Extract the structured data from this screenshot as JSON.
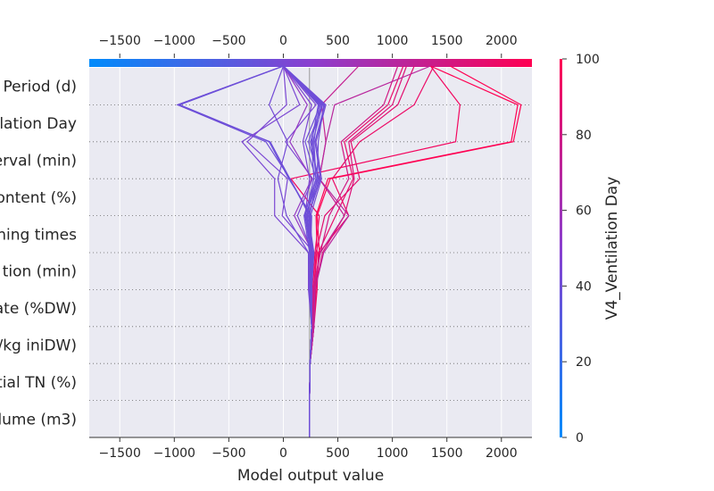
{
  "chart_data": {
    "type": "line",
    "xlabel": "Model output value",
    "xlim": [
      -1780,
      2280
    ],
    "x_ticks": [
      -1500,
      -1000,
      -500,
      0,
      500,
      1000,
      1500,
      2000
    ],
    "x_tick_labels": [
      "−1500",
      "−1000",
      "−500",
      "0",
      "500",
      "1000",
      "1500",
      "2000"
    ],
    "base_value": 240,
    "features": [
      "Period (d)",
      "lation Day",
      "erval (min)",
      "ontent (%)",
      "ning times",
      "tion (min)",
      "ate (%DW)",
      "/kg iniDW)",
      "tial TN (%)",
      "lume (m3)"
    ],
    "colorbar": {
      "label": "V4_Ventilation Day",
      "min": 0,
      "max": 100,
      "ticks": [
        0,
        20,
        40,
        60,
        80,
        100
      ],
      "colors": [
        "#008bfb",
        "#8a3fcf",
        "#ff0052"
      ]
    },
    "series": [
      {
        "color_value": 100,
        "values": [
          1530,
          2180,
          2110,
          430,
          310,
          330,
          290,
          280,
          245,
          240
        ]
      },
      {
        "color_value": 100,
        "values": [
          1350,
          2150,
          2090,
          410,
          300,
          310,
          280,
          280,
          245,
          240
        ]
      },
      {
        "color_value": 95,
        "values": [
          1350,
          1620,
          1580,
          70,
          330,
          290,
          270,
          270,
          245,
          240
        ]
      },
      {
        "color_value": 92,
        "values": [
          1380,
          1200,
          700,
          450,
          600,
          330,
          300,
          280,
          245,
          240
        ]
      },
      {
        "color_value": 90,
        "values": [
          1100,
          960,
          560,
          640,
          480,
          320,
          310,
          280,
          245,
          240
        ]
      },
      {
        "color_value": 88,
        "values": [
          1200,
          1050,
          620,
          700,
          380,
          300,
          280,
          270,
          245,
          240
        ]
      },
      {
        "color_value": 85,
        "values": [
          1130,
          1000,
          600,
          650,
          560,
          360,
          290,
          280,
          245,
          240
        ]
      },
      {
        "color_value": 80,
        "values": [
          1050,
          920,
          530,
          600,
          420,
          340,
          280,
          270,
          245,
          240
        ]
      },
      {
        "color_value": 75,
        "values": [
          690,
          350,
          390,
          330,
          560,
          340,
          270,
          280,
          245,
          240
        ]
      },
      {
        "color_value": 70,
        "values": [
          1350,
          470,
          390,
          330,
          600,
          370,
          290,
          280,
          245,
          240
        ]
      },
      {
        "color_value": 40,
        "values": [
          0,
          -970,
          -160,
          60,
          250,
          250,
          250,
          260,
          245,
          240
        ]
      },
      {
        "color_value": 38,
        "values": [
          0,
          -950,
          -130,
          50,
          260,
          250,
          240,
          260,
          245,
          240
        ]
      },
      {
        "color_value": 40,
        "values": [
          0,
          -970,
          -120,
          60,
          240,
          250,
          250,
          260,
          245,
          240
        ]
      },
      {
        "color_value": 45,
        "values": [
          0,
          30,
          -330,
          40,
          -10,
          280,
          250,
          260,
          245,
          240
        ]
      },
      {
        "color_value": 45,
        "values": [
          0,
          150,
          -380,
          -80,
          -80,
          230,
          230,
          260,
          245,
          240
        ]
      },
      {
        "color_value": 42,
        "values": [
          0,
          -130,
          40,
          -50,
          30,
          230,
          240,
          260,
          245,
          240
        ]
      },
      {
        "color_value": 45,
        "values": [
          0,
          300,
          20,
          270,
          130,
          270,
          250,
          260,
          245,
          240
        ]
      },
      {
        "color_value": 55,
        "values": [
          0,
          220,
          60,
          260,
          100,
          270,
          260,
          260,
          245,
          240
        ]
      },
      {
        "color_value": 45,
        "values": [
          0,
          260,
          180,
          240,
          200,
          270,
          250,
          260,
          245,
          240
        ]
      },
      {
        "color_value": 40,
        "values": [
          0,
          330,
          280,
          300,
          220,
          260,
          250,
          260,
          245,
          240
        ]
      },
      {
        "color_value": 40,
        "values": [
          0,
          360,
          230,
          330,
          230,
          280,
          260,
          260,
          245,
          240
        ]
      },
      {
        "color_value": 42,
        "values": [
          0,
          390,
          300,
          350,
          250,
          260,
          240,
          260,
          245,
          240
        ]
      },
      {
        "color_value": 40,
        "values": [
          0,
          350,
          250,
          320,
          210,
          250,
          250,
          260,
          245,
          240
        ]
      },
      {
        "color_value": 40,
        "values": [
          0,
          370,
          320,
          310,
          240,
          270,
          240,
          260,
          245,
          240
        ]
      },
      {
        "color_value": 40,
        "values": [
          0,
          340,
          200,
          300,
          190,
          240,
          250,
          260,
          245,
          240
        ]
      },
      {
        "color_value": 40,
        "values": [
          0,
          380,
          290,
          340,
          230,
          260,
          250,
          260,
          245,
          240
        ]
      },
      {
        "color_value": 40,
        "values": [
          0,
          320,
          260,
          280,
          200,
          250,
          240,
          260,
          245,
          240
        ]
      },
      {
        "color_value": 40,
        "values": [
          0,
          360,
          270,
          300,
          210,
          270,
          260,
          260,
          245,
          240
        ]
      }
    ]
  }
}
